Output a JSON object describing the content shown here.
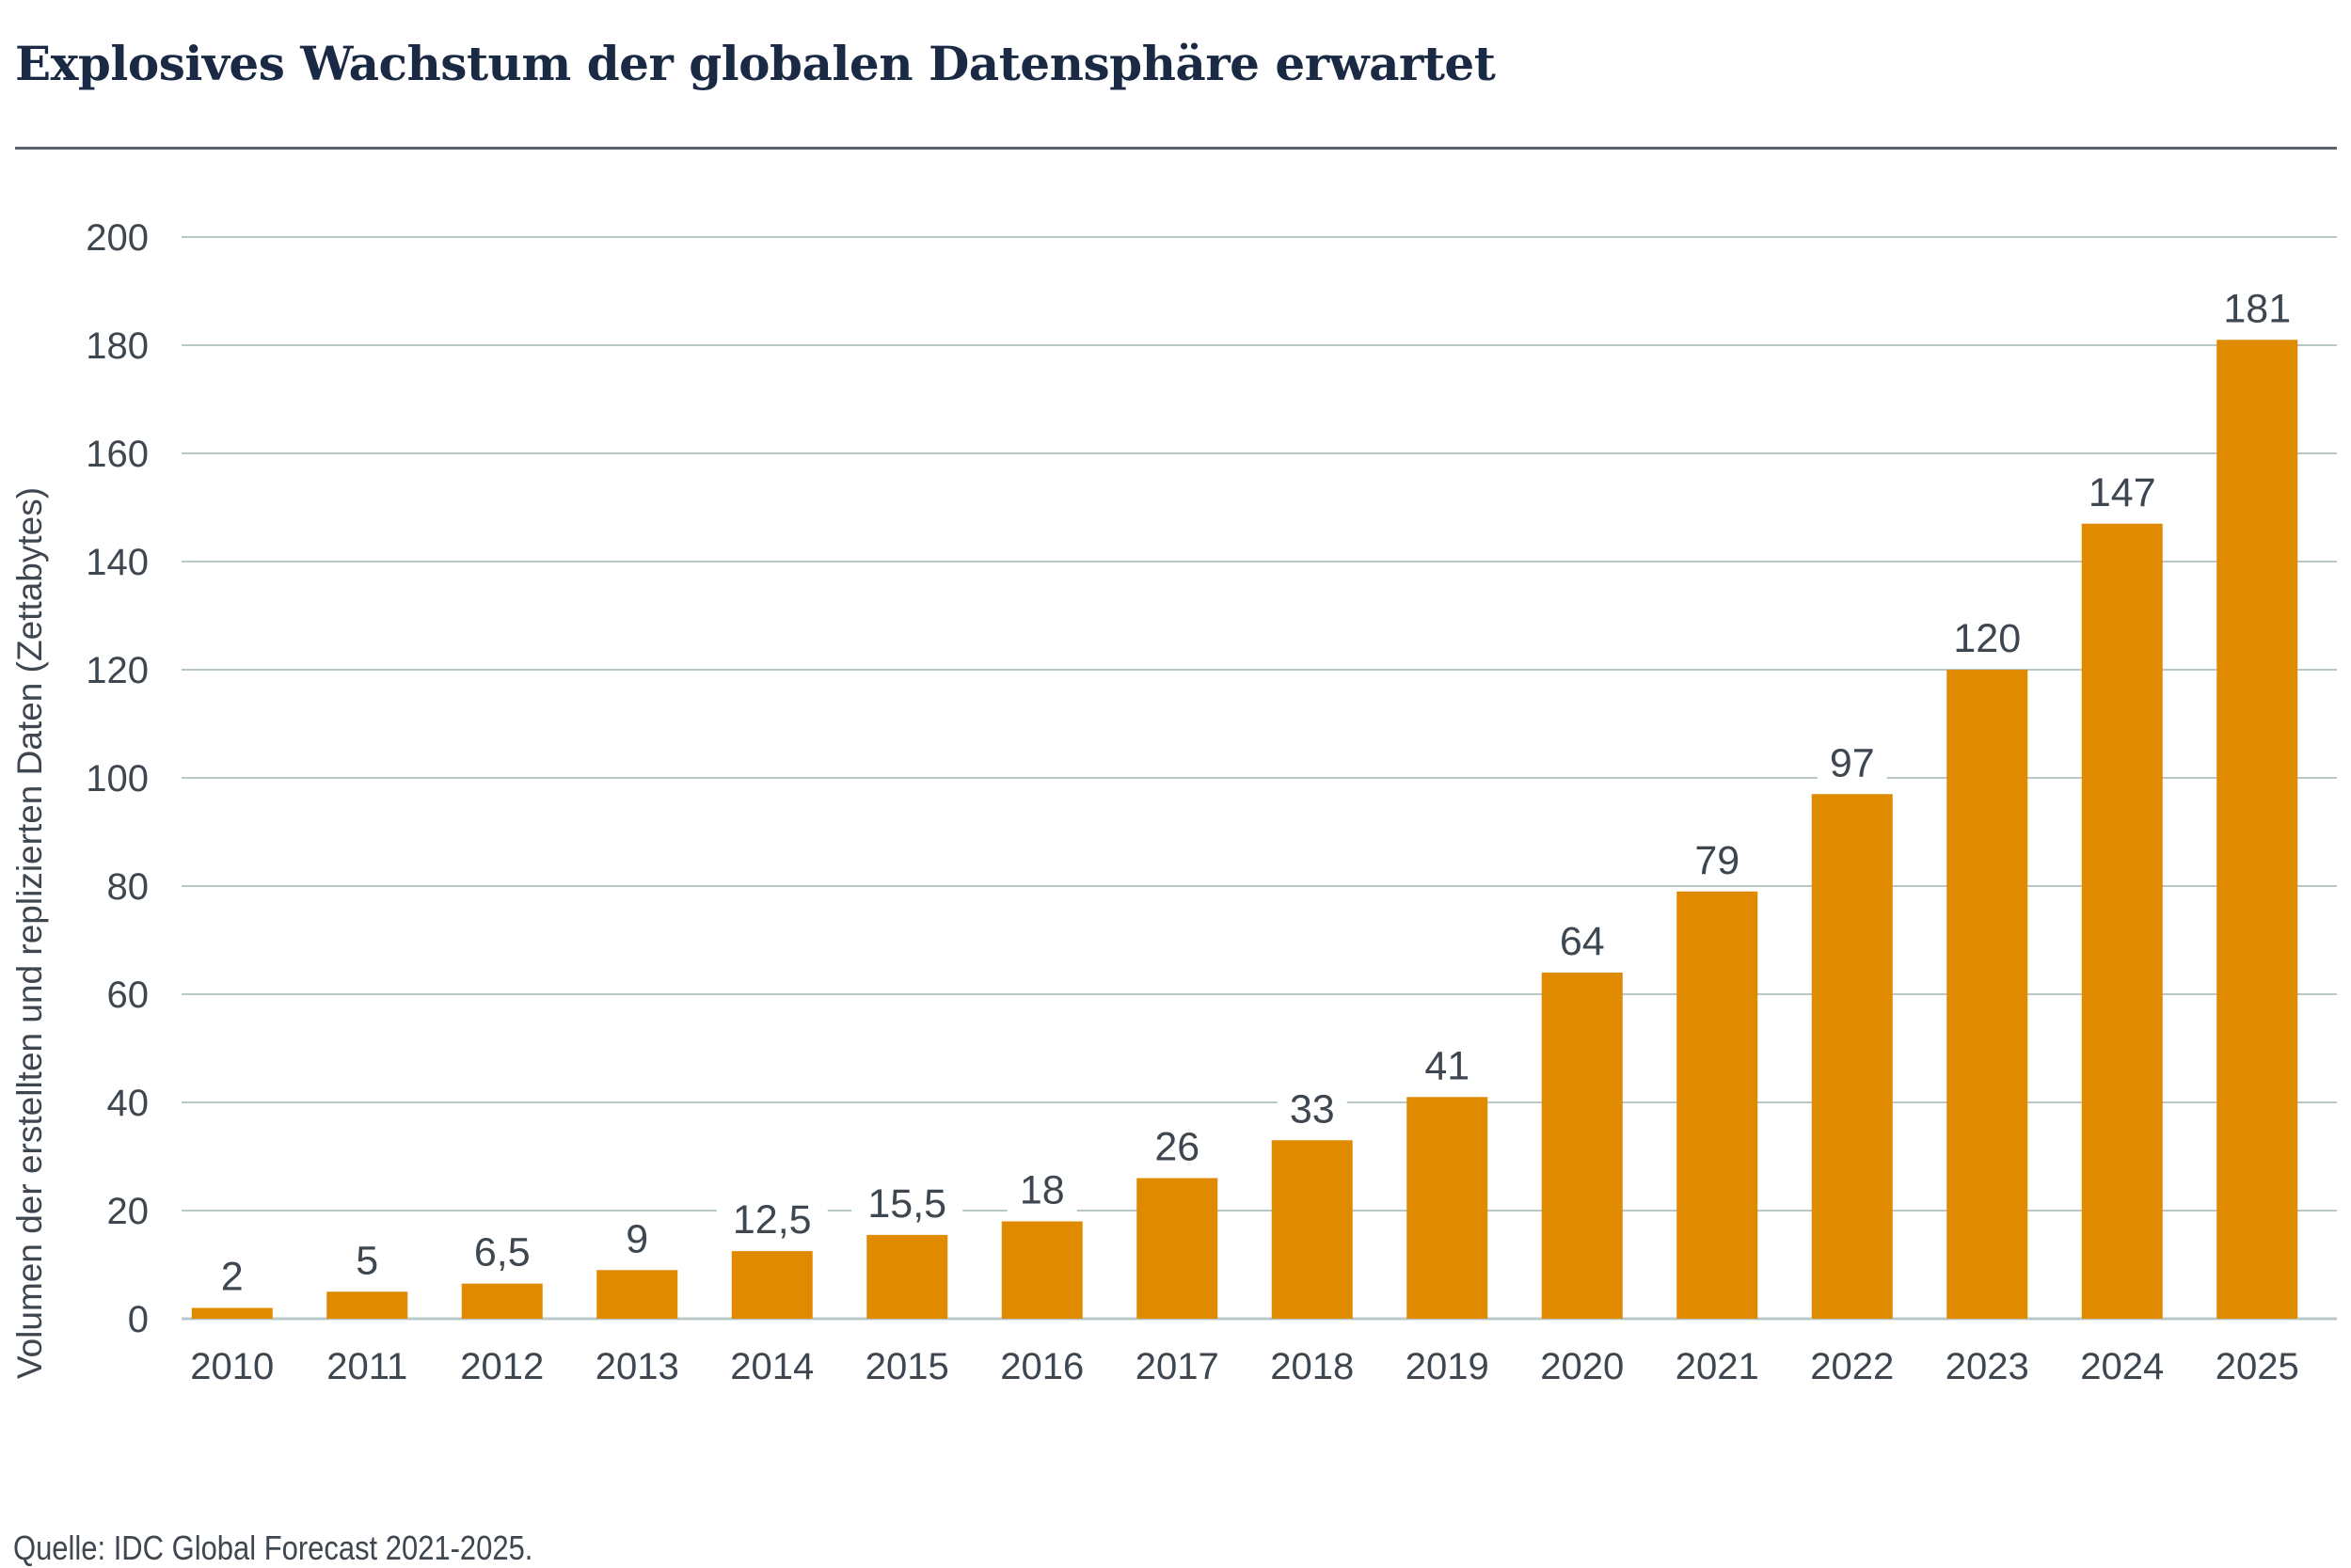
{
  "header": {
    "title": "Explosives Wachstum der globalen Datensphäre erwartet"
  },
  "footer": {
    "source": "Quelle: IDC Global Forecast 2021-2025."
  },
  "colors": {
    "bar": "#e08a00",
    "grid": "#b8c8c8",
    "text": "#3e4650",
    "title": "#1b2a44"
  },
  "chart_data": {
    "type": "bar",
    "title": "Explosives Wachstum der globalen Datensphäre erwartet",
    "xlabel": "",
    "ylabel": "Volumen der erstellten und replizierten Daten (Zettabytes)",
    "ylim": [
      0,
      200
    ],
    "yticks": [
      0,
      20,
      40,
      60,
      80,
      100,
      120,
      140,
      160,
      180,
      200
    ],
    "grid": true,
    "categories": [
      "2010",
      "2011",
      "2012",
      "2013",
      "2014",
      "2015",
      "2016",
      "2017",
      "2018",
      "2019",
      "2020",
      "2021",
      "2022",
      "2023",
      "2024",
      "2025"
    ],
    "values": [
      2,
      5,
      6.5,
      9,
      12.5,
      15.5,
      18,
      26,
      33,
      41,
      64,
      79,
      97,
      120,
      147,
      181
    ],
    "data_labels": [
      "2",
      "5",
      "6,5",
      "9",
      "12,5",
      "15,5",
      "18",
      "26",
      "33",
      "41",
      "64",
      "79",
      "97",
      "120",
      "147",
      "181"
    ]
  }
}
